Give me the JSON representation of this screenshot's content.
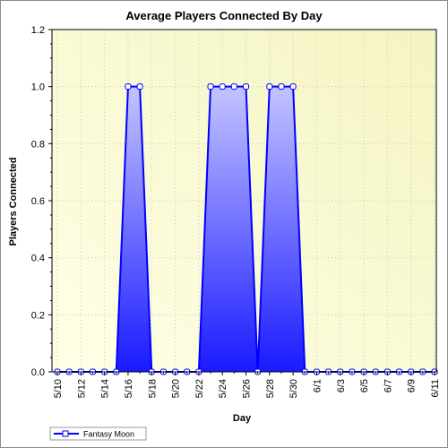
{
  "chart_data": {
    "type": "area",
    "title": "Average Players Connected By Day",
    "xlabel": "Day",
    "ylabel": "Players Connected",
    "ylim": [
      0,
      1.2
    ],
    "y_ticks": [
      "0.0",
      "0.2",
      "0.4",
      "0.6",
      "0.8",
      "1.0",
      "1.2"
    ],
    "x": [
      "5/10",
      "5/11",
      "5/12",
      "5/13",
      "5/14",
      "5/15",
      "5/16",
      "5/17",
      "5/18",
      "5/19",
      "5/20",
      "5/21",
      "5/22",
      "5/23",
      "5/24",
      "5/25",
      "5/26",
      "5/27",
      "5/28",
      "5/29",
      "5/30",
      "5/31",
      "6/1",
      "6/2",
      "6/3",
      "6/4",
      "6/5",
      "6/6",
      "6/7",
      "6/8",
      "6/9",
      "6/10",
      "6/11"
    ],
    "x_tick_labels": [
      "5/10",
      "5/12",
      "5/14",
      "5/16",
      "5/18",
      "5/20",
      "5/22",
      "5/24",
      "5/26",
      "5/28",
      "5/30",
      "6/1",
      "6/3",
      "6/5",
      "6/7",
      "6/9",
      "6/11"
    ],
    "series": [
      {
        "name": "Fantasy Moon",
        "values": [
          0,
          0,
          0,
          0,
          0,
          0,
          1,
          1,
          0,
          0,
          0,
          0,
          0,
          1,
          1,
          1,
          1,
          0,
          1,
          1,
          1,
          0,
          0,
          0,
          0,
          0,
          0,
          0,
          0,
          0,
          0,
          0,
          0
        ]
      }
    ],
    "grid": true,
    "legend_position": "bottom-left",
    "colors": {
      "line": "#0000ff",
      "fill_top": "#c4c4ff",
      "fill_bottom": "#1a1aff",
      "plot_bg_light": "#ffffe6",
      "plot_bg_dark": "#f4f4c2",
      "grid": "#c8c8c8",
      "marker_fill": "#ffffff"
    }
  }
}
